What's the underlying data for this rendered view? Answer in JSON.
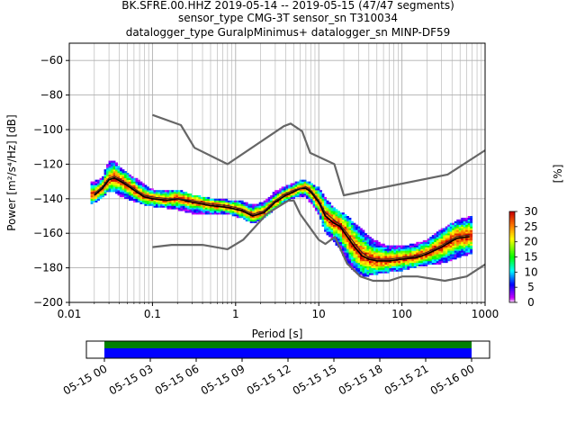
{
  "title": {
    "line1": "BK.SFRE.00.HHZ   2019-05-14 -- 2019-05-15  (47/47 segments)",
    "line2": "sensor_type CMG-3T sensor_sn T310034",
    "line3": "datalogger_type GuralpMinimus+ datalogger_sn MINP-DF59"
  },
  "chart_data": {
    "type": "heatmap",
    "xlabel": "Period [s]",
    "ylabel": "Power [m²/s⁴/Hz] [dB]",
    "xscale": "log",
    "xlim": [
      0.01,
      1000
    ],
    "ylim": [
      -200,
      -50
    ],
    "x_ticks": [
      {
        "value": 0.01,
        "label": "0.01"
      },
      {
        "value": 0.1,
        "label": "0.1"
      },
      {
        "value": 1,
        "label": "1"
      },
      {
        "value": 10,
        "label": "10"
      },
      {
        "value": 100,
        "label": "100"
      },
      {
        "value": 1000,
        "label": "1000"
      }
    ],
    "y_ticks": [
      {
        "value": -60,
        "label": "−60"
      },
      {
        "value": -80,
        "label": "−80"
      },
      {
        "value": -100,
        "label": "−100"
      },
      {
        "value": -120,
        "label": "−120"
      },
      {
        "value": -140,
        "label": "−140"
      },
      {
        "value": -160,
        "label": "−160"
      },
      {
        "value": -180,
        "label": "−180"
      },
      {
        "value": -200,
        "label": "−200"
      }
    ],
    "grid": true,
    "colorbar": {
      "label": "[%]",
      "range": [
        0,
        30
      ],
      "ticks": [
        {
          "value": 0,
          "label": "0"
        },
        {
          "value": 5,
          "label": "5"
        },
        {
          "value": 10,
          "label": "10"
        },
        {
          "value": 15,
          "label": "15"
        },
        {
          "value": 20,
          "label": "20"
        },
        {
          "value": 25,
          "label": "25"
        },
        {
          "value": 30,
          "label": "30"
        }
      ]
    },
    "series": [
      {
        "role": "high-noise-model",
        "color": "#666666",
        "x": [
          0.1,
          0.22,
          0.32,
          0.8,
          3.8,
          4.6,
          6.3,
          7.9,
          15.4,
          20,
          354.8,
          1000
        ],
        "y": [
          -91.5,
          -97.4,
          -110.5,
          -120,
          -98,
          -96.5,
          -101,
          -113.5,
          -120,
          -138,
          -126,
          -112
        ]
      },
      {
        "role": "low-noise-model",
        "color": "#666666",
        "x": [
          0.1,
          0.17,
          0.4,
          0.8,
          1.24,
          2.4,
          4.3,
          5.0,
          6.0,
          10,
          12,
          15.6,
          21.9,
          31.6,
          45,
          70,
          101,
          154,
          328,
          600,
          1000
        ],
        "y": [
          -168,
          -166.7,
          -166.7,
          -169.2,
          -163.7,
          -148.6,
          -141.1,
          -141.1,
          -149,
          -163.8,
          -166.2,
          -162.1,
          -177.5,
          -185,
          -187.5,
          -187.5,
          -185,
          -185,
          -187.5,
          -185,
          -178
        ]
      },
      {
        "role": "mode",
        "color": "#000000",
        "x": [
          0.02,
          0.025,
          0.03,
          0.035,
          0.045,
          0.06,
          0.08,
          0.1,
          0.15,
          0.2,
          0.3,
          0.5,
          0.8,
          1.2,
          1.6,
          2.2,
          3,
          4,
          5,
          6,
          7,
          8,
          10,
          12,
          15,
          18,
          22,
          27,
          33,
          40,
          50,
          70,
          100,
          150,
          200,
          300,
          450,
          650
        ],
        "y": [
          -138,
          -134,
          -129,
          -128,
          -131,
          -135,
          -139,
          -140,
          -141,
          -140,
          -142,
          -144,
          -145,
          -147,
          -150,
          -148,
          -142,
          -138,
          -136,
          -134,
          -134,
          -136,
          -142,
          -150,
          -154,
          -156,
          -162,
          -168,
          -173,
          -175,
          -176,
          -176,
          -175,
          -174,
          -172,
          -168,
          -163,
          -162
        ]
      },
      {
        "role": "mean",
        "color": "#2a2a2a",
        "x": [
          0.02,
          0.025,
          0.03,
          0.035,
          0.045,
          0.06,
          0.08,
          0.1,
          0.15,
          0.2,
          0.3,
          0.5,
          0.8,
          1.2,
          1.6,
          2.2,
          3,
          4,
          5,
          6,
          7,
          8,
          10,
          12,
          15,
          18,
          22,
          27,
          33,
          40,
          50,
          70,
          100,
          150,
          200,
          300,
          450,
          650
        ],
        "y": [
          -137,
          -133,
          -128,
          -127,
          -130,
          -134,
          -138,
          -139,
          -140,
          -140,
          -141,
          -143,
          -144,
          -146,
          -149,
          -147,
          -141,
          -137,
          -135,
          -134,
          -133,
          -135,
          -141,
          -148,
          -152,
          -155,
          -160,
          -166,
          -171,
          -174,
          -175,
          -175,
          -174,
          -173,
          -171,
          -167,
          -162,
          -161
        ]
      }
    ],
    "density_band": {
      "x": [
        0.018,
        0.025,
        0.03,
        0.035,
        0.045,
        0.06,
        0.08,
        0.1,
        0.15,
        0.2,
        0.3,
        0.5,
        0.8,
        1.2,
        1.6,
        2.2,
        3,
        4,
        5,
        6,
        7,
        8,
        10,
        12,
        15,
        18,
        22,
        27,
        33,
        40,
        50,
        70,
        100,
        150,
        200,
        300,
        450,
        700
      ],
      "lo": [
        -144,
        -140,
        -136,
        -137,
        -140,
        -142,
        -144,
        -145,
        -146,
        -147,
        -149,
        -150,
        -149,
        -152,
        -155,
        -152,
        -146,
        -142,
        -140,
        -139,
        -140,
        -143,
        -150,
        -160,
        -165,
        -170,
        -178,
        -183,
        -185,
        -185,
        -184,
        -183,
        -182,
        -180,
        -179,
        -178,
        -175,
        -172
      ],
      "hi": [
        -131,
        -128,
        -118,
        -119,
        -124,
        -128,
        -132,
        -135,
        -136,
        -135,
        -138,
        -140,
        -141,
        -142,
        -144,
        -142,
        -136,
        -133,
        -131,
        -130,
        -130,
        -131,
        -134,
        -140,
        -145,
        -148,
        -150,
        -155,
        -158,
        -162,
        -165,
        -168,
        -168,
        -166,
        -164,
        -158,
        -153,
        -150
      ]
    },
    "timeline": {
      "ticks": [
        "05-15 00",
        "05-15 03",
        "05-15 06",
        "05-15 09",
        "05-15 12",
        "05-15 15",
        "05-15 18",
        "05-15 21",
        "05-16 00"
      ],
      "coverage_start_h": 0,
      "coverage_end_h": 24,
      "data_color": "#0000ff",
      "gap_color": "#008000"
    }
  }
}
